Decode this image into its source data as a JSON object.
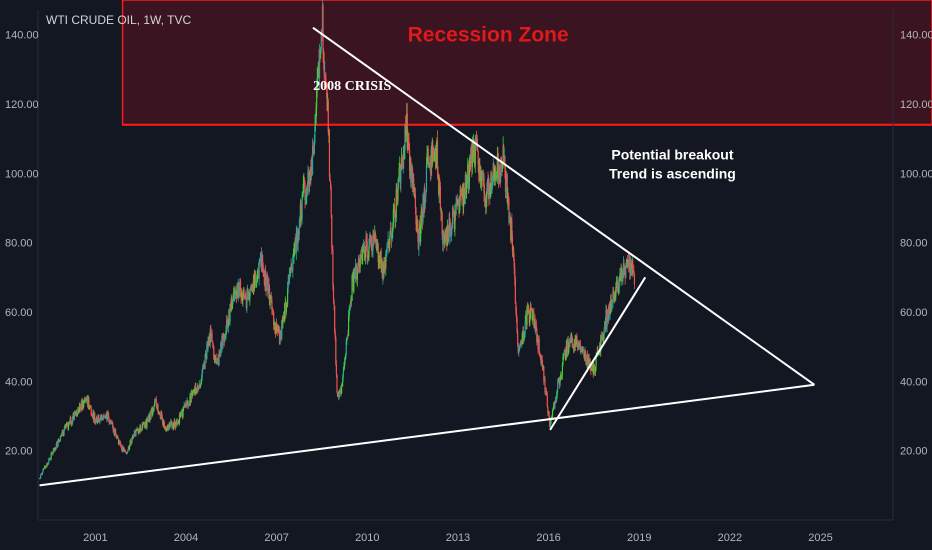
{
  "symbol_label": "WTI CRUDE OIL, 1W, TVC",
  "colors": {
    "background": "#131722",
    "up_candle": "#26a69a",
    "up_candle_bright": "#3cd13c",
    "down_candle": "#ef5350",
    "zone_fill": "#3a1420",
    "zone_border": "#ff1a1a",
    "zone_text": "#e0191b",
    "trendline": "#ffffff",
    "axis_text": "#b2b5be"
  },
  "chart_data": {
    "type": "line",
    "title": "WTI CRUDE OIL, 1W, TVC",
    "x_tick_labels": [
      "2001",
      "2004",
      "2007",
      "2010",
      "2013",
      "2016",
      "2019",
      "2022",
      "2025"
    ],
    "y_tick_labels": [
      "20.00",
      "40.00",
      "60.00",
      "80.00",
      "100.00",
      "120.00",
      "140.00"
    ],
    "xlim": [
      1999.1,
      2027.4
    ],
    "ylim": [
      0,
      150
    ],
    "grid": false,
    "series": [
      {
        "values_are": "approximate weekly price path (year, USD)",
        "points": [
          [
            1999.15,
            12
          ],
          [
            1999.5,
            18
          ],
          [
            1999.9,
            25
          ],
          [
            2000.3,
            30
          ],
          [
            2000.7,
            35
          ],
          [
            2001.0,
            29
          ],
          [
            2001.4,
            30
          ],
          [
            2001.8,
            22
          ],
          [
            2002.0,
            19
          ],
          [
            2002.3,
            25
          ],
          [
            2002.7,
            28
          ],
          [
            2003.0,
            34
          ],
          [
            2003.3,
            27
          ],
          [
            2003.7,
            28
          ],
          [
            2004.0,
            33
          ],
          [
            2004.5,
            40
          ],
          [
            2004.8,
            54
          ],
          [
            2005.0,
            44
          ],
          [
            2005.3,
            55
          ],
          [
            2005.7,
            68
          ],
          [
            2006.0,
            63
          ],
          [
            2006.5,
            75
          ],
          [
            2006.9,
            58
          ],
          [
            2007.1,
            52
          ],
          [
            2007.5,
            73
          ],
          [
            2007.9,
            95
          ],
          [
            2008.2,
            105
          ],
          [
            2008.5,
            145
          ],
          [
            2008.7,
            115
          ],
          [
            2008.9,
            60
          ],
          [
            2009.0,
            35
          ],
          [
            2009.15,
            38
          ],
          [
            2009.3,
            50
          ],
          [
            2009.5,
            68
          ],
          [
            2009.9,
            78
          ],
          [
            2010.3,
            80
          ],
          [
            2010.5,
            72
          ],
          [
            2010.9,
            88
          ],
          [
            2011.3,
            113
          ],
          [
            2011.7,
            80
          ],
          [
            2012.0,
            103
          ],
          [
            2012.3,
            106
          ],
          [
            2012.5,
            80
          ],
          [
            2012.9,
            88
          ],
          [
            2013.2,
            95
          ],
          [
            2013.6,
            108
          ],
          [
            2013.9,
            93
          ],
          [
            2014.2,
            100
          ],
          [
            2014.5,
            105
          ],
          [
            2014.8,
            80
          ],
          [
            2015.0,
            47
          ],
          [
            2015.3,
            60
          ],
          [
            2015.5,
            58
          ],
          [
            2015.8,
            44
          ],
          [
            2016.05,
            27
          ],
          [
            2016.3,
            38
          ],
          [
            2016.6,
            50
          ],
          [
            2016.9,
            52
          ],
          [
            2017.2,
            47
          ],
          [
            2017.5,
            43
          ],
          [
            2017.9,
            58
          ],
          [
            2018.2,
            65
          ],
          [
            2018.5,
            72
          ],
          [
            2018.75,
            75
          ],
          [
            2018.85,
            69
          ]
        ]
      }
    ],
    "annotations": {
      "recession_zone": {
        "label": "Recession Zone",
        "x_from": 2001.9,
        "y_from": 114,
        "y_to": 150
      },
      "crisis_label": {
        "text": "2008 CRISIS",
        "x": 2009.5,
        "y": 124
      },
      "breakout_note": {
        "lines": [
          "Potential breakout",
          "Trend is ascending"
        ],
        "x": 2020.1,
        "y": 104
      },
      "trendlines": [
        {
          "name": "long-term support",
          "from": [
            1999.15,
            10
          ],
          "to": [
            2024.8,
            39
          ]
        },
        {
          "name": "descending resistance",
          "from": [
            2008.2,
            142
          ],
          "to": [
            2024.8,
            39
          ]
        },
        {
          "name": "ascending support",
          "from": [
            2016.05,
            26
          ],
          "to": [
            2019.2,
            70
          ]
        }
      ]
    }
  }
}
